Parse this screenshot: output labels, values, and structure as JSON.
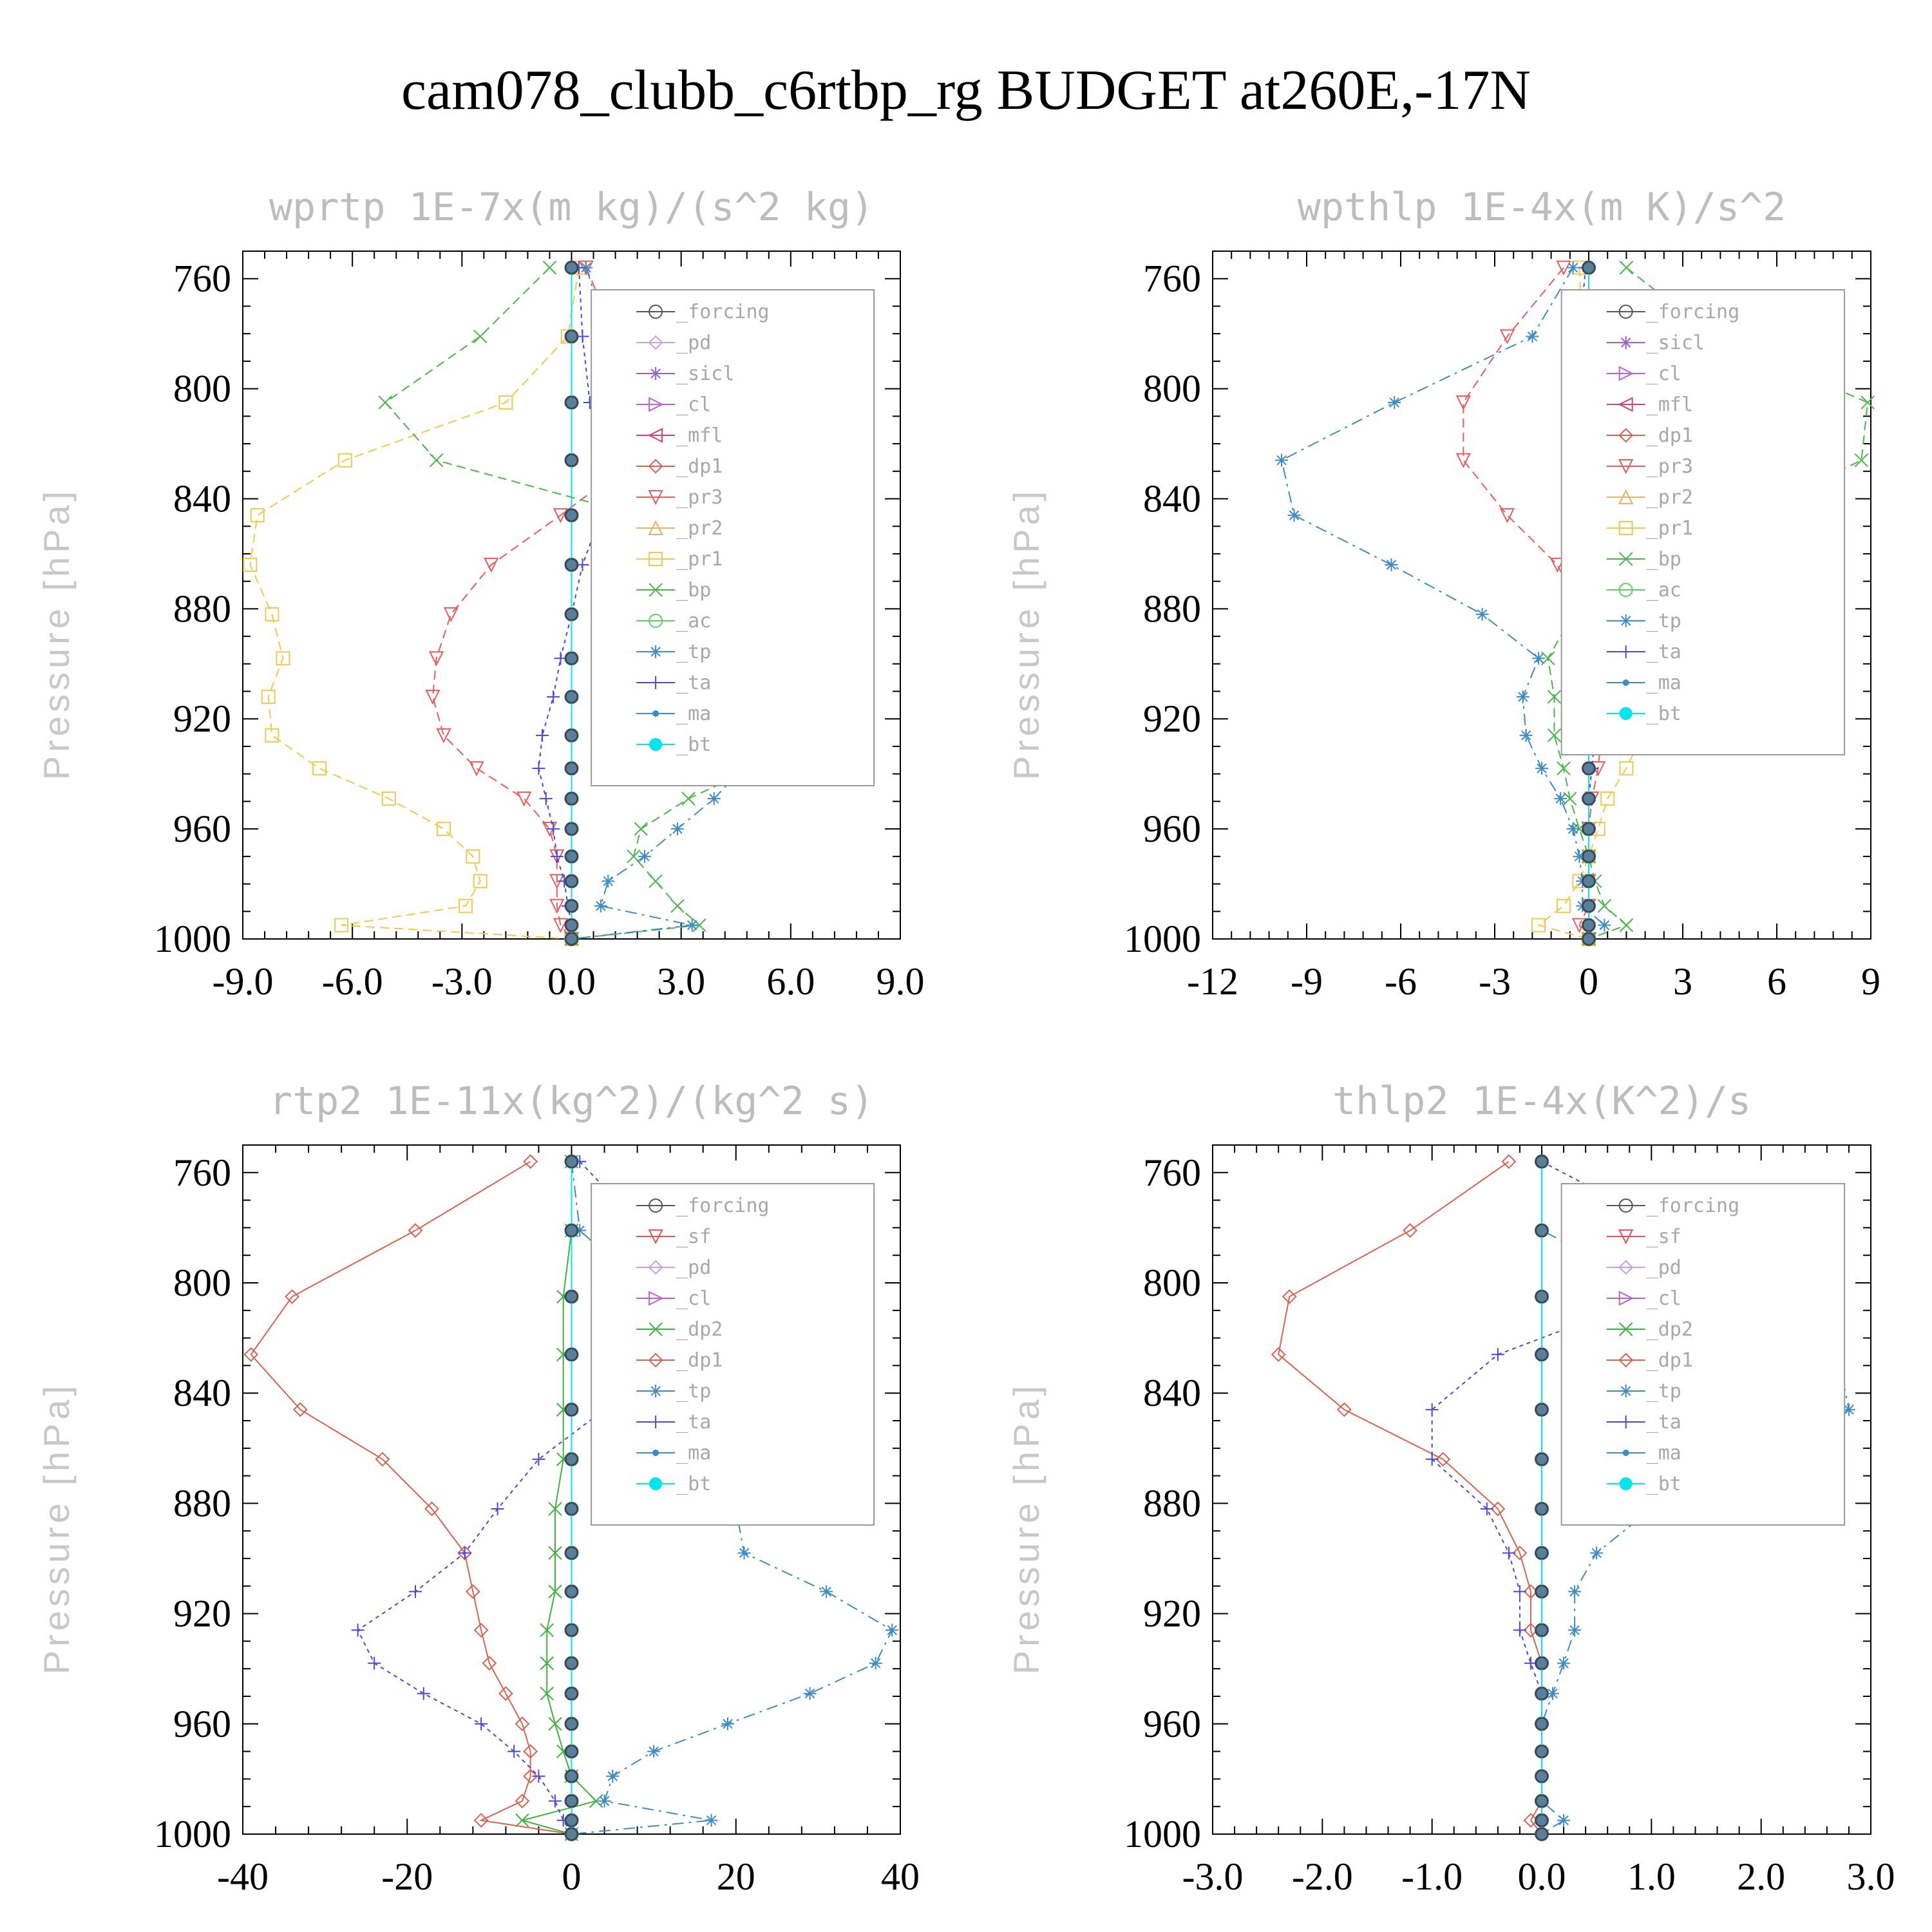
{
  "title": "cam078_clubb_c6rtbp_rg  BUDGET at260E,-17N",
  "colors": {
    "forcing": "#555555",
    "pd": "#c7a0e8",
    "sicl": "#9d5cd6",
    "cl": "#c060d0",
    "mfl": "#d84070",
    "dp1": "#e06050",
    "pr3": "#f05a5a",
    "pr2": "#f0b060",
    "pr1": "#f5c84a",
    "bp": "#48b848",
    "ac": "#5ed45e",
    "tp": "#3c8cc8",
    "ta": "#4848e0",
    "ma": "#3c8cc8",
    "bt": "#00e5ee",
    "sf": "#f05050",
    "dp2": "#3cb43c",
    "dp1g": "#70dc50"
  },
  "chart_data": [
    {
      "type": "line",
      "title": "wprtp  1E-7x(m kg)/(s^2 kg)",
      "ylabel": "Pressure [hPa]",
      "xlim": [
        -9,
        9
      ],
      "ylim": [
        750,
        1000
      ],
      "xticks": [
        "-9.0",
        "-6.0",
        "-3.0",
        "0.0",
        "3.0",
        "6.0",
        "9.0"
      ],
      "yticks": [
        "760",
        "800",
        "840",
        "880",
        "920",
        "960",
        "1000"
      ],
      "levels": [
        756,
        781,
        805,
        826,
        846,
        864,
        882,
        898,
        912,
        926,
        938,
        949,
        960,
        970,
        979,
        988,
        995,
        1000
      ],
      "legend": [
        "_forcing",
        "_pd",
        "_sicl",
        "_cl",
        "_mfl",
        "_dp1",
        "_pr3",
        "_pr2",
        "_pr1",
        "_bp",
        "_ac",
        "_tp",
        "_ta",
        "_ma",
        "_bt"
      ],
      "series": [
        {
          "name": "_pr1",
          "values": [
            0.2,
            -0.1,
            -1.8,
            -6.2,
            -8.6,
            -8.8,
            -8.2,
            -7.9,
            -8.3,
            -8.2,
            -6.9,
            -5.0,
            -3.5,
            -2.7,
            -2.5,
            -2.9,
            -6.3,
            0.0
          ]
        },
        {
          "name": "_pr3",
          "values": [
            0.4,
            1.2,
            2.2,
            1.7,
            -0.3,
            -2.2,
            -3.3,
            -3.7,
            -3.8,
            -3.5,
            -2.6,
            -1.3,
            -0.6,
            -0.4,
            -0.4,
            -0.4,
            -0.3,
            0.0
          ]
        },
        {
          "name": "_bp",
          "values": [
            -0.6,
            -2.5,
            -5.1,
            -3.7,
            1.8,
            4.3,
            6.8,
            7.6,
            7.7,
            7.2,
            5.0,
            3.2,
            1.9,
            1.7,
            2.3,
            2.9,
            3.5,
            0.0
          ]
        },
        {
          "name": "_tp",
          "values": [
            0.4,
            1.0,
            2.6,
            7.5,
            7.6,
            5.5,
            3.9,
            3.6,
            4.8,
            5.1,
            4.7,
            3.9,
            2.9,
            2.0,
            1.0,
            0.8,
            3.3,
            0.0
          ]
        },
        {
          "name": "_ta",
          "values": [
            0.2,
            0.3,
            0.5,
            0.8,
            0.8,
            0.3,
            0.0,
            -0.3,
            -0.5,
            -0.8,
            -0.9,
            -0.7,
            -0.5,
            -0.4,
            -0.2,
            -0.1,
            0.0,
            0.0
          ]
        },
        {
          "name": "_forcing",
          "values": [
            0,
            0,
            0,
            0,
            0,
            0,
            0,
            0,
            0,
            0,
            0,
            0,
            0,
            0,
            0,
            0,
            0,
            0
          ]
        },
        {
          "name": "_ma",
          "values": [
            0,
            0,
            0,
            0,
            0,
            0,
            0,
            0,
            0,
            0,
            0,
            0,
            0,
            0,
            0,
            0,
            0,
            0
          ]
        },
        {
          "name": "_bt",
          "values": [
            0,
            0,
            0,
            0,
            0,
            0,
            0,
            0,
            0,
            0,
            0,
            0,
            0,
            0,
            0,
            0,
            0,
            0
          ]
        }
      ]
    },
    {
      "type": "line",
      "title": "wpthlp  1E-4x(m K)/s^2",
      "ylabel": "Pressure [hPa]",
      "xlim": [
        -12,
        9
      ],
      "ylim": [
        750,
        1000
      ],
      "xticks": [
        "-12",
        "-9",
        "-6",
        "-3",
        "0",
        "3",
        "6",
        "9"
      ],
      "yticks": [
        "760",
        "800",
        "840",
        "880",
        "920",
        "960",
        "1000"
      ],
      "levels": [
        756,
        781,
        805,
        826,
        846,
        864,
        882,
        898,
        912,
        926,
        938,
        949,
        960,
        970,
        979,
        988,
        995,
        1000
      ],
      "legend": [
        "_forcing",
        "_sicl",
        "_cl",
        "_mfl",
        "_dp1",
        "_pr3",
        "_pr2",
        "_pr1",
        "_bp",
        "_ac",
        "_tp",
        "_ta",
        "_ma",
        "_bt"
      ],
      "series": [
        {
          "name": "_pr3",
          "values": [
            -0.8,
            -2.6,
            -4.0,
            -4.0,
            -2.6,
            -1.0,
            -0.2,
            0.5,
            0.6,
            0.4,
            0.3,
            0.1,
            0.0,
            0.0,
            0.0,
            0.0,
            -0.3,
            0.0
          ]
        },
        {
          "name": "_pr1",
          "values": [
            -0.3,
            -0.2,
            1.5,
            5.5,
            6.5,
            5.5,
            3.5,
            2.3,
            2.0,
            1.7,
            1.2,
            0.6,
            0.3,
            0.0,
            -0.3,
            -0.8,
            -1.6,
            0.0
          ]
        },
        {
          "name": "_bp",
          "values": [
            1.2,
            4.0,
            8.9,
            8.7,
            5.1,
            2.0,
            -0.5,
            -1.3,
            -1.1,
            -1.1,
            -0.8,
            -0.6,
            -0.3,
            0.0,
            0.2,
            0.5,
            1.2,
            0.0
          ]
        },
        {
          "name": "_tp",
          "values": [
            -0.5,
            -1.8,
            -6.2,
            -9.8,
            -9.4,
            -6.3,
            -3.4,
            -1.6,
            -2.1,
            -2.0,
            -1.5,
            -0.9,
            -0.5,
            -0.3,
            -0.2,
            -0.2,
            0.5,
            0.0
          ]
        },
        {
          "name": "_ta",
          "values": [
            -0.1,
            -0.3,
            -0.4,
            -0.4,
            -0.2,
            -0.1,
            0.1,
            0.2,
            0.2,
            0.2,
            0.1,
            0.0,
            0.0,
            0.0,
            0.0,
            0.0,
            0.0,
            0.0
          ]
        },
        {
          "name": "_forcing",
          "values": [
            0,
            0,
            0,
            0,
            0,
            0,
            0,
            0,
            0,
            0,
            0,
            0,
            0,
            0,
            0,
            0,
            0,
            0
          ]
        },
        {
          "name": "_ma",
          "values": [
            0,
            0,
            0,
            0,
            0,
            0,
            0,
            0,
            0,
            0,
            0,
            0,
            0,
            0,
            0,
            0,
            0,
            0
          ]
        },
        {
          "name": "_bt",
          "values": [
            0,
            0,
            0,
            0,
            0,
            0,
            0,
            0,
            0,
            0,
            0,
            0,
            0,
            0,
            0,
            0,
            0,
            0
          ]
        }
      ]
    },
    {
      "type": "line",
      "title": "rtp2  1E-11x(kg^2)/(kg^2 s)",
      "ylabel": "Pressure [hPa]",
      "xlim": [
        -40,
        40
      ],
      "ylim": [
        750,
        1000
      ],
      "xticks": [
        "-40",
        "-20",
        "0",
        "20",
        "40"
      ],
      "yticks": [
        "760",
        "800",
        "840",
        "880",
        "920",
        "960",
        "1000"
      ],
      "levels": [
        756,
        781,
        805,
        826,
        846,
        864,
        882,
        898,
        912,
        926,
        938,
        949,
        960,
        970,
        979,
        988,
        995,
        1000
      ],
      "legend": [
        "_forcing",
        "_sf",
        "_pd",
        "_cl",
        "_dp2",
        "_dp1",
        "_tp",
        "_ta",
        "_ma",
        "_bt"
      ],
      "series": [
        {
          "name": "_dp1",
          "values": [
            -5,
            -19,
            -34,
            -39,
            -33,
            -23,
            -17,
            -13,
            -12,
            -11,
            -10,
            -8,
            -6,
            -5,
            -5,
            -6,
            -11,
            0
          ]
        },
        {
          "name": "_dp2",
          "values": [
            0,
            0,
            -1,
            -1,
            -1,
            -1,
            -2,
            -2,
            -2,
            -3,
            -3,
            -3,
            -2,
            -1,
            0,
            3,
            -6,
            0
          ]
        },
        {
          "name": "_tp",
          "values": [
            0,
            1,
            10,
            24,
            30,
            24,
            20,
            21,
            31,
            39,
            37,
            29,
            19,
            10,
            5,
            4,
            17,
            0
          ]
        },
        {
          "name": "_ta",
          "values": [
            1,
            9,
            25,
            15,
            4,
            -4,
            -9,
            -13,
            -19,
            -26,
            -24,
            -18,
            -11,
            -7,
            -4,
            -2,
            -1,
            0
          ]
        },
        {
          "name": "_forcing",
          "values": [
            0,
            0,
            0,
            0,
            0,
            0,
            0,
            0,
            0,
            0,
            0,
            0,
            0,
            0,
            0,
            0,
            0,
            0
          ]
        },
        {
          "name": "_ma",
          "values": [
            0,
            0,
            0,
            0,
            0,
            0,
            0,
            0,
            0,
            0,
            0,
            0,
            0,
            0,
            0,
            0,
            0,
            0
          ]
        },
        {
          "name": "_bt",
          "values": [
            0,
            0,
            0,
            0,
            0,
            0,
            0,
            0,
            0,
            0,
            0,
            0,
            0,
            0,
            0,
            0,
            0,
            0
          ]
        }
      ]
    },
    {
      "type": "line",
      "title": "thlp2  1E-4x(K^2)/s",
      "ylabel": "Pressure [hPa]",
      "xlim": [
        -3,
        3
      ],
      "ylim": [
        750,
        1000
      ],
      "xticks": [
        "-3.0",
        "-2.0",
        "-1.0",
        "0.0",
        "1.0",
        "2.0",
        "3.0"
      ],
      "yticks": [
        "760",
        "800",
        "840",
        "880",
        "920",
        "960",
        "1000"
      ],
      "levels": [
        756,
        781,
        805,
        826,
        846,
        864,
        882,
        898,
        912,
        926,
        938,
        949,
        960,
        970,
        979,
        988,
        995,
        1000
      ],
      "legend": [
        "_forcing",
        "_sf",
        "_pd",
        "_cl",
        "_dp2",
        "_dp1",
        "_tp",
        "_ta",
        "_ma",
        "_bt"
      ],
      "series": [
        {
          "name": "_dp1",
          "values": [
            -0.3,
            -1.2,
            -2.3,
            -2.4,
            -1.8,
            -0.9,
            -0.4,
            -0.2,
            -0.1,
            -0.1,
            0.0,
            0.0,
            0.0,
            0.0,
            0.0,
            0.0,
            -0.1,
            0.0
          ]
        },
        {
          "name": "_tp",
          "values": [
            0.0,
            0.0,
            1.2,
            2.7,
            2.8,
            2.0,
            1.0,
            0.5,
            0.3,
            0.3,
            0.2,
            0.1,
            0.0,
            0.0,
            0.0,
            0.0,
            0.2,
            0.0
          ]
        },
        {
          "name": "_ta",
          "values": [
            0.0,
            1.2,
            1.0,
            -0.4,
            -1.0,
            -1.0,
            -0.5,
            -0.3,
            -0.2,
            -0.2,
            -0.1,
            0.0,
            0.0,
            0.0,
            0.0,
            0.0,
            0.0,
            0.0
          ]
        },
        {
          "name": "_forcing",
          "values": [
            0,
            0,
            0,
            0,
            0,
            0,
            0,
            0,
            0,
            0,
            0,
            0,
            0,
            0,
            0,
            0,
            0,
            0
          ]
        },
        {
          "name": "_ma",
          "values": [
            0,
            0,
            0,
            0,
            0,
            0,
            0,
            0,
            0,
            0,
            0,
            0,
            0,
            0,
            0,
            0,
            0,
            0
          ]
        },
        {
          "name": "_bt",
          "values": [
            0,
            0,
            0,
            0,
            0,
            0,
            0,
            0,
            0,
            0,
            0,
            0,
            0,
            0,
            0,
            0,
            0,
            0
          ]
        }
      ]
    }
  ]
}
